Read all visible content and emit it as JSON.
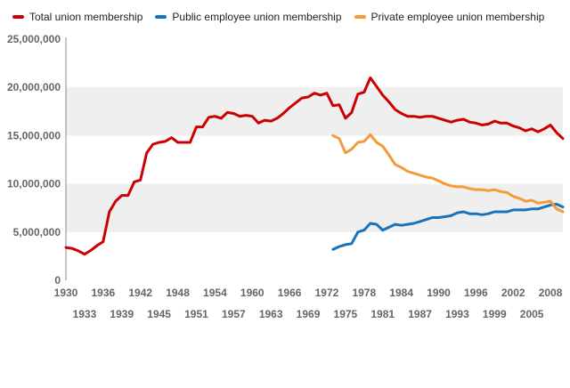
{
  "chart_data": {
    "type": "line",
    "title": "",
    "xlabel": "",
    "ylabel": "",
    "xlim": [
      1930,
      2010
    ],
    "ylim": [
      0,
      25000000
    ],
    "y_ticks": [
      {
        "value": 0,
        "label": "0"
      },
      {
        "value": 5000000,
        "label": "5,000,000"
      },
      {
        "value": 10000000,
        "label": "10,000,000"
      },
      {
        "value": 15000000,
        "label": "15,000,000"
      },
      {
        "value": 20000000,
        "label": "20,000,000"
      },
      {
        "value": 25000000,
        "label": "25,000,000"
      }
    ],
    "x_ticks_upper": [
      1930,
      1936,
      1942,
      1948,
      1954,
      1960,
      1966,
      1972,
      1978,
      1984,
      1990,
      1996,
      2002,
      2008
    ],
    "x_ticks_lower": [
      1933,
      1939,
      1945,
      1951,
      1957,
      1963,
      1969,
      1975,
      1981,
      1987,
      1993,
      1999,
      2005
    ],
    "grid": "alternating horizontal bands",
    "legend_position": "top-left",
    "series": [
      {
        "name": "Total union membership",
        "color": "#cc0000",
        "points": [
          [
            1930,
            3400000
          ],
          [
            1931,
            3300000
          ],
          [
            1932,
            3050000
          ],
          [
            1933,
            2700000
          ],
          [
            1934,
            3100000
          ],
          [
            1935,
            3600000
          ],
          [
            1936,
            4000000
          ],
          [
            1937,
            7100000
          ],
          [
            1938,
            8200000
          ],
          [
            1939,
            8800000
          ],
          [
            1940,
            8800000
          ],
          [
            1941,
            10200000
          ],
          [
            1942,
            10400000
          ],
          [
            1943,
            13200000
          ],
          [
            1944,
            14100000
          ],
          [
            1945,
            14300000
          ],
          [
            1946,
            14400000
          ],
          [
            1947,
            14800000
          ],
          [
            1948,
            14300000
          ],
          [
            1949,
            14300000
          ],
          [
            1950,
            14300000
          ],
          [
            1951,
            15900000
          ],
          [
            1952,
            15900000
          ],
          [
            1953,
            16900000
          ],
          [
            1954,
            17000000
          ],
          [
            1955,
            16800000
          ],
          [
            1956,
            17400000
          ],
          [
            1957,
            17300000
          ],
          [
            1958,
            17000000
          ],
          [
            1959,
            17100000
          ],
          [
            1960,
            17000000
          ],
          [
            1961,
            16300000
          ],
          [
            1962,
            16600000
          ],
          [
            1963,
            16500000
          ],
          [
            1964,
            16800000
          ],
          [
            1965,
            17300000
          ],
          [
            1966,
            17900000
          ],
          [
            1967,
            18400000
          ],
          [
            1968,
            18900000
          ],
          [
            1969,
            19000000
          ],
          [
            1970,
            19400000
          ],
          [
            1971,
            19200000
          ],
          [
            1972,
            19400000
          ],
          [
            1973,
            18100000
          ],
          [
            1974,
            18200000
          ],
          [
            1975,
            16800000
          ],
          [
            1976,
            17400000
          ],
          [
            1977,
            19300000
          ],
          [
            1978,
            19500000
          ],
          [
            1979,
            21000000
          ],
          [
            1980,
            20100000
          ],
          [
            1981,
            19200000
          ],
          [
            1982,
            18500000
          ],
          [
            1983,
            17700000
          ],
          [
            1984,
            17300000
          ],
          [
            1985,
            17000000
          ],
          [
            1986,
            17000000
          ],
          [
            1987,
            16900000
          ],
          [
            1988,
            17000000
          ],
          [
            1989,
            17000000
          ],
          [
            1990,
            16800000
          ],
          [
            1991,
            16600000
          ],
          [
            1992,
            16400000
          ],
          [
            1993,
            16600000
          ],
          [
            1994,
            16700000
          ],
          [
            1995,
            16400000
          ],
          [
            1996,
            16300000
          ],
          [
            1997,
            16100000
          ],
          [
            1998,
            16200000
          ],
          [
            1999,
            16500000
          ],
          [
            2000,
            16300000
          ],
          [
            2001,
            16300000
          ],
          [
            2002,
            16000000
          ],
          [
            2003,
            15800000
          ],
          [
            2004,
            15500000
          ],
          [
            2005,
            15700000
          ],
          [
            2006,
            15400000
          ],
          [
            2007,
            15700000
          ],
          [
            2008,
            16100000
          ],
          [
            2009,
            15300000
          ],
          [
            2010,
            14700000
          ]
        ]
      },
      {
        "name": "Public employee union membership",
        "color": "#1a73b8",
        "points": [
          [
            1973,
            3200000
          ],
          [
            1974,
            3500000
          ],
          [
            1975,
            3700000
          ],
          [
            1976,
            3800000
          ],
          [
            1977,
            5000000
          ],
          [
            1978,
            5200000
          ],
          [
            1979,
            5900000
          ],
          [
            1980,
            5800000
          ],
          [
            1981,
            5200000
          ],
          [
            1982,
            5500000
          ],
          [
            1983,
            5800000
          ],
          [
            1984,
            5700000
          ],
          [
            1985,
            5800000
          ],
          [
            1986,
            5900000
          ],
          [
            1987,
            6100000
          ],
          [
            1988,
            6300000
          ],
          [
            1989,
            6500000
          ],
          [
            1990,
            6500000
          ],
          [
            1991,
            6600000
          ],
          [
            1992,
            6700000
          ],
          [
            1993,
            7000000
          ],
          [
            1994,
            7100000
          ],
          [
            1995,
            6900000
          ],
          [
            1996,
            6900000
          ],
          [
            1997,
            6800000
          ],
          [
            1998,
            6900000
          ],
          [
            1999,
            7100000
          ],
          [
            2000,
            7100000
          ],
          [
            2001,
            7100000
          ],
          [
            2002,
            7300000
          ],
          [
            2003,
            7300000
          ],
          [
            2004,
            7300000
          ],
          [
            2005,
            7400000
          ],
          [
            2006,
            7400000
          ],
          [
            2007,
            7600000
          ],
          [
            2008,
            7800000
          ],
          [
            2009,
            7900000
          ],
          [
            2010,
            7600000
          ]
        ]
      },
      {
        "name": "Private employee union membership",
        "color": "#f29c38",
        "points": [
          [
            1973,
            15000000
          ],
          [
            1974,
            14700000
          ],
          [
            1975,
            13200000
          ],
          [
            1976,
            13600000
          ],
          [
            1977,
            14300000
          ],
          [
            1978,
            14400000
          ],
          [
            1979,
            15100000
          ],
          [
            1980,
            14300000
          ],
          [
            1981,
            13900000
          ],
          [
            1982,
            13000000
          ],
          [
            1983,
            12000000
          ],
          [
            1984,
            11700000
          ],
          [
            1985,
            11300000
          ],
          [
            1986,
            11100000
          ],
          [
            1987,
            10900000
          ],
          [
            1988,
            10700000
          ],
          [
            1989,
            10600000
          ],
          [
            1990,
            10300000
          ],
          [
            1991,
            10000000
          ],
          [
            1992,
            9800000
          ],
          [
            1993,
            9700000
          ],
          [
            1994,
            9700000
          ],
          [
            1995,
            9500000
          ],
          [
            1996,
            9400000
          ],
          [
            1997,
            9400000
          ],
          [
            1998,
            9300000
          ],
          [
            1999,
            9400000
          ],
          [
            2000,
            9200000
          ],
          [
            2001,
            9100000
          ],
          [
            2002,
            8700000
          ],
          [
            2003,
            8500000
          ],
          [
            2004,
            8200000
          ],
          [
            2005,
            8300000
          ],
          [
            2006,
            8000000
          ],
          [
            2007,
            8100000
          ],
          [
            2008,
            8200000
          ],
          [
            2009,
            7400000
          ],
          [
            2010,
            7100000
          ]
        ]
      }
    ]
  }
}
